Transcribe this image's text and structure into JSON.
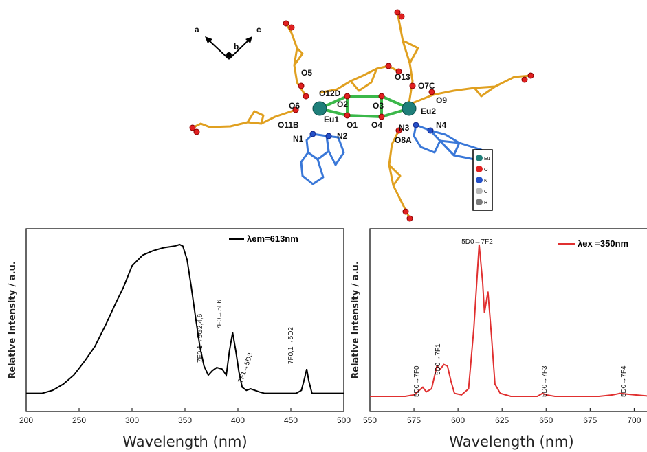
{
  "figure": {
    "structure": {
      "axes_labels": [
        "a",
        "b",
        "c"
      ],
      "atom_labels": [
        "O5",
        "O6",
        "O11B",
        "O12D",
        "O2",
        "O1",
        "Eu1",
        "N1",
        "N2",
        "O3",
        "O4",
        "O13",
        "O7C",
        "O9",
        "Eu2",
        "N3",
        "N4",
        "O8A"
      ],
      "legend": [
        "Eu",
        "O",
        "N",
        "C",
        "H"
      ],
      "colors": {
        "eu": "#1f7f7a",
        "o": "#e02020",
        "n": "#2450c8",
        "c_bond": "#e0a020",
        "n_bond": "#3a78d8",
        "ring": "#3bb84a",
        "c_atom": "#b8b8b8",
        "h_atom": "#7a7a7a"
      }
    }
  },
  "chart_data": [
    {
      "type": "line",
      "panel": "excitation",
      "xlabel": "Wavelength (nm)",
      "ylabel": "Relative Intensity / a.u.",
      "xlim": [
        200,
        500
      ],
      "xticks": [
        200,
        250,
        300,
        350,
        400,
        450,
        500
      ],
      "ylim": [
        0,
        1.05
      ],
      "legend": {
        "label": "λem=613nm",
        "color": "#000000",
        "position": "top-right"
      },
      "series": [
        {
          "color": "#000000",
          "x": [
            200,
            215,
            225,
            235,
            245,
            255,
            265,
            275,
            285,
            292,
            300,
            310,
            320,
            330,
            340,
            345,
            348,
            352,
            356,
            360,
            364,
            368,
            372,
            376,
            380,
            385,
            389,
            392,
            395,
            398,
            401,
            404,
            408,
            412,
            416,
            420,
            425,
            440,
            455,
            460,
            463,
            465,
            467,
            470,
            480,
            500
          ],
          "y": [
            0.02,
            0.02,
            0.04,
            0.08,
            0.14,
            0.23,
            0.33,
            0.47,
            0.62,
            0.72,
            0.86,
            0.93,
            0.96,
            0.98,
            0.99,
            1.0,
            0.99,
            0.9,
            0.72,
            0.52,
            0.33,
            0.2,
            0.14,
            0.17,
            0.19,
            0.18,
            0.14,
            0.3,
            0.42,
            0.3,
            0.16,
            0.06,
            0.04,
            0.05,
            0.04,
            0.03,
            0.02,
            0.02,
            0.02,
            0.04,
            0.12,
            0.18,
            0.1,
            0.02,
            0.02,
            0.02
          ]
        }
      ],
      "annotations": [
        {
          "text": "7F0,1→5G2,4,6",
          "x": 383
        },
        {
          "text": "7F0→5L6",
          "x": 395
        },
        {
          "text": "7F1→5D3",
          "x": 416
        },
        {
          "text": "7F0,1→5D2",
          "x": 465
        }
      ]
    },
    {
      "type": "line",
      "panel": "emission",
      "xlabel": "Wavelength (nm)",
      "ylabel": "Relative Intensity / a.u.",
      "xlim": [
        550,
        710
      ],
      "xticks": [
        550,
        575,
        600,
        625,
        650,
        675,
        700
      ],
      "ylim": [
        0,
        1.05
      ],
      "legend": {
        "label": "λex =350nm",
        "color": "#e03030",
        "position": "top-right"
      },
      "series": [
        {
          "color": "#e03030",
          "x": [
            550,
            570,
            575,
            578,
            580,
            582,
            585,
            588,
            590,
            592,
            594,
            596,
            598,
            602,
            606,
            609,
            612,
            614,
            615,
            617,
            619,
            621,
            624,
            630,
            645,
            648,
            650,
            655,
            665,
            680,
            688,
            692,
            696,
            700,
            710
          ],
          "y": [
            0.0,
            0.0,
            0.01,
            0.04,
            0.06,
            0.03,
            0.05,
            0.2,
            0.18,
            0.21,
            0.2,
            0.1,
            0.02,
            0.01,
            0.05,
            0.45,
            1.0,
            0.75,
            0.55,
            0.69,
            0.4,
            0.08,
            0.02,
            0.0,
            0.0,
            0.02,
            0.01,
            0.0,
            0.0,
            0.0,
            0.01,
            0.02,
            0.015,
            0.01,
            0.0
          ]
        }
      ],
      "annotations": [
        {
          "text": "5D0→7F2",
          "x": 612
        },
        {
          "text": "5D0→7F0",
          "x": 579
        },
        {
          "text": "5D0→7F1",
          "x": 590
        },
        {
          "text": "5D0→7F3",
          "x": 650
        },
        {
          "text": "5D0→7F4",
          "x": 697
        }
      ]
    }
  ]
}
